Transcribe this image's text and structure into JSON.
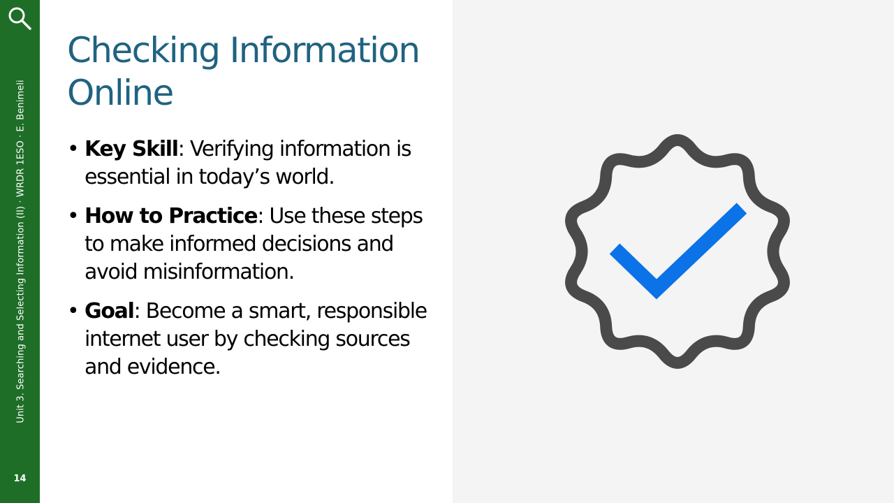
{
  "sidebar": {
    "text": "Unit 3. Searching and Selecting Information (II) · WRDR 1ESO · E. Benimeli",
    "slide_number": "14",
    "background_color": "#1e6e27",
    "icon": "search-icon"
  },
  "slide": {
    "title_line1": "Checking Information",
    "title_line2": "Online",
    "title_color": "#1f6381",
    "bullets": [
      {
        "term": "Key Skill",
        "text": ": Verifying information is essential in today’s world."
      },
      {
        "term": "How to Practice",
        "text": ": Use these steps to make informed decisions and avoid misinformation."
      },
      {
        "term": "Goal",
        "text": ": Become a smart, responsible internet user by checking sources and evidence."
      }
    ]
  },
  "illustration": {
    "icon": "verified-badge-icon",
    "badge_color": "#4a4a4a",
    "check_color": "#0b72e7",
    "panel_color": "#f4f4f4"
  }
}
